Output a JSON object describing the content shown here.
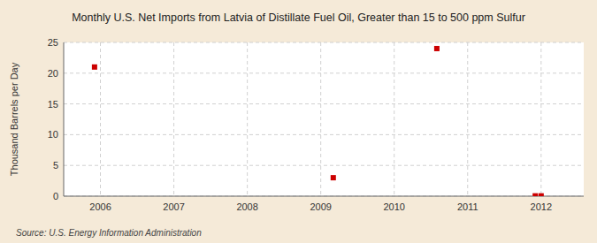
{
  "chart_data": {
    "type": "scatter",
    "title": "Monthly U.S. Net Imports from Latvia of Distillate Fuel Oil, Greater than 15 to 500 ppm Sulfur",
    "ylabel": "Thousand Barrels per Day",
    "annotations": [
      "Source: U.S. Energy Information Administration"
    ],
    "x": [
      2005.92,
      2009.17,
      2010.58,
      2011.92,
      2012.0
    ],
    "values": [
      21.0,
      3.0,
      24.0,
      0.05,
      0.05
    ],
    "color": "#cc0000",
    "marker": "square",
    "xlim": [
      2005.5,
      2012.58
    ],
    "ylim": [
      0,
      25
    ],
    "xticks": [
      2006,
      2007,
      2008,
      2009,
      2010,
      2011,
      2012
    ],
    "yticks": [
      0,
      5,
      10,
      15,
      20,
      25
    ],
    "grid": true
  }
}
